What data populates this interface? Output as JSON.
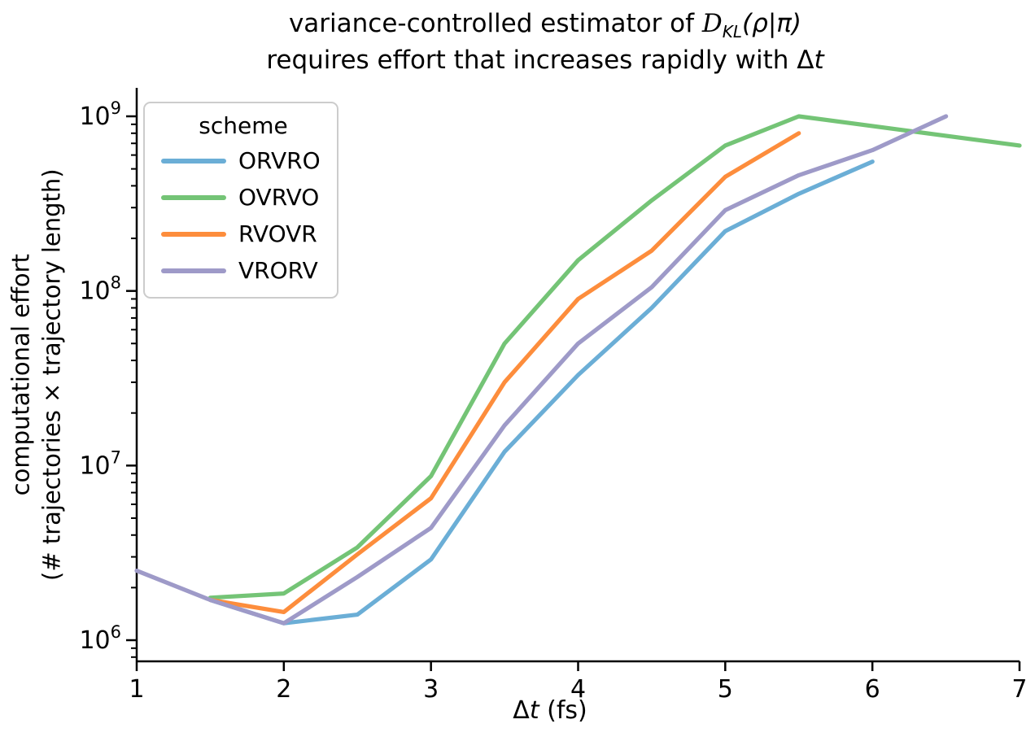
{
  "figure": {
    "title": {
      "line1_pre": "variance-controlled estimator of ",
      "line1_d": "D",
      "line1_sub": "KL",
      "line1_args": "(ρ|π)",
      "line2_pre": "requires effort that increases rapidly with ",
      "line2_delta": "Δ",
      "line2_t": "t"
    },
    "xlabel": {
      "delta": "Δ",
      "t": "t",
      "units": " (fs)"
    },
    "ylabel": {
      "line1": "computational effort",
      "line2": "(# trajectories × trajectory length)"
    },
    "legend": {
      "title": "scheme"
    }
  },
  "chart_data": {
    "type": "line",
    "xscale": "linear",
    "yscale": "log",
    "xlabel": "Δt (fs)",
    "ylabel": "computational effort (# trajectories × trajectory length)",
    "xlim": [
      1,
      7
    ],
    "ylim": [
      760000.0,
      1450000000.0
    ],
    "grid": false,
    "legend_position": "upper left",
    "x_ticks": [
      "1",
      "2",
      "3",
      "4",
      "5",
      "6",
      "7"
    ],
    "y_tick_base": "10",
    "y_tick_exponents": [
      "6",
      "7",
      "8",
      "9"
    ],
    "series": [
      {
        "name": "ORVRO",
        "color": "#6baed6",
        "x": [
          1.5,
          2,
          2.5,
          3,
          3.5,
          4,
          4.5,
          5,
          5.5,
          6
        ],
        "y": [
          1700000.0,
          1250000.0,
          1400000.0,
          2900000.0,
          12000000.0,
          33000000.0,
          80000000.0,
          220000000.0,
          360000000.0,
          550000000.0
        ]
      },
      {
        "name": "OVRVO",
        "color": "#74c476",
        "x": [
          1.5,
          2,
          2.5,
          3,
          3.5,
          4,
          4.5,
          5,
          5.5,
          7
        ],
        "y": [
          1750000.0,
          1850000.0,
          3400000.0,
          8700000.0,
          50000000.0,
          150000000.0,
          330000000.0,
          680000000.0,
          1000000000.0,
          680000000.0
        ]
      },
      {
        "name": "RVOVR",
        "color": "#fd8d3c",
        "x": [
          1.5,
          2,
          2.5,
          3,
          3.5,
          4,
          4.5,
          5,
          5.5
        ],
        "y": [
          1700000.0,
          1450000.0,
          3100000.0,
          6500000.0,
          30000000.0,
          90000000.0,
          170000000.0,
          450000000.0,
          800000000.0
        ]
      },
      {
        "name": "VRORV",
        "color": "#9e9ac8",
        "x": [
          1,
          1.5,
          2,
          2.5,
          3,
          3.5,
          4,
          4.5,
          5,
          5.5,
          6,
          6.5
        ],
        "y": [
          2500000.0,
          1700000.0,
          1250000.0,
          2300000.0,
          4400000.0,
          17000000.0,
          50000000.0,
          105000000.0,
          290000000.0,
          460000000.0,
          640000000.0,
          1000000000.0
        ]
      }
    ]
  }
}
